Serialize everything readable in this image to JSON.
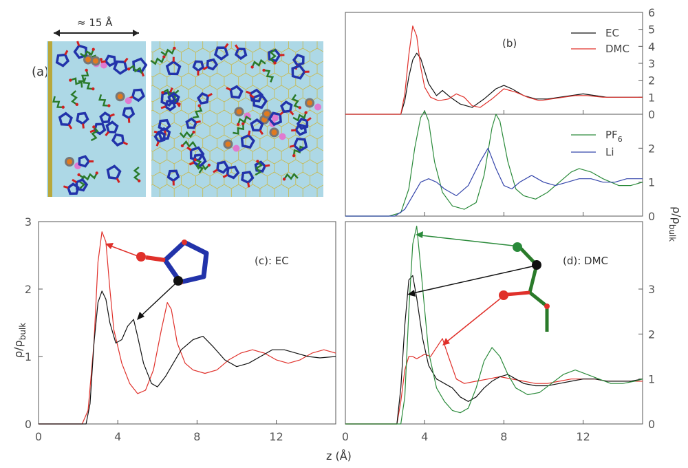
{
  "panel_a": {
    "label": "(a)",
    "scale_text": "≈ 15 Å",
    "box_color": "#add8e6",
    "graphene_color": "#c9b84a",
    "ec_color": "#2233aa",
    "dmc_color": "#2a7a2a",
    "li_color": "#e07ad0",
    "pf6_color": "#e07a20"
  },
  "panel_b": {
    "label": "(b)",
    "legend_top": [
      "EC",
      "DMC"
    ],
    "legend_bottom_pf": "PF",
    "legend_bottom_pf_sub": "6",
    "legend_bottom_li": "Li",
    "right_ticks_top": [
      "6",
      "5",
      "4",
      "3",
      "2",
      "1",
      "0"
    ],
    "right_ticks_bottom": [
      "2",
      "1",
      "0"
    ]
  },
  "panel_c": {
    "label": "(c): EC",
    "ylabel": "ρ/ρ",
    "ylabel_sub": "bulk",
    "yticks": [
      "0",
      "1",
      "2",
      "3"
    ],
    "xticks": [
      "0",
      "4",
      "8",
      "12"
    ]
  },
  "panel_d": {
    "label": "(d): DMC",
    "ylabel": "ρ/ρ",
    "ylabel_sub": "bulk",
    "yticks": [
      "0",
      "1",
      "2",
      "3"
    ],
    "xticks": [
      "0",
      "4",
      "8",
      "12"
    ]
  },
  "xlabel": "z (Å)",
  "colors": {
    "red": "#e0302a",
    "black": "#111111",
    "green": "#2a8a3a",
    "blue": "#3344aa",
    "axis": "#555555"
  },
  "chart_data": [
    {
      "panel": "b-top",
      "type": "line",
      "xlim": [
        0,
        15
      ],
      "ylim": [
        0,
        6
      ],
      "series": [
        {
          "name": "EC",
          "x": [
            0,
            2.8,
            3.0,
            3.2,
            3.4,
            3.6,
            3.8,
            4.2,
            4.6,
            4.9,
            5.3,
            5.8,
            6.4,
            7.0,
            7.6,
            8.0,
            8.4,
            9.0,
            9.6,
            10.2,
            10.8,
            11.4,
            12.0,
            12.6,
            13.2,
            14.0,
            15.0
          ],
          "y": [
            0,
            0,
            0.8,
            2.2,
            3.2,
            3.6,
            3.3,
            1.8,
            1.1,
            1.4,
            1.0,
            0.6,
            0.4,
            0.9,
            1.5,
            1.7,
            1.5,
            1.1,
            0.9,
            0.9,
            1.0,
            1.1,
            1.2,
            1.1,
            1.0,
            1.0,
            1.0
          ]
        },
        {
          "name": "DMC",
          "x": [
            0,
            2.8,
            3.0,
            3.2,
            3.4,
            3.6,
            3.8,
            4.0,
            4.3,
            4.7,
            5.2,
            5.6,
            6.0,
            6.4,
            6.8,
            7.4,
            8.0,
            8.6,
            9.2,
            9.8,
            10.4,
            11.0,
            11.6,
            12.2,
            13.0,
            14.0,
            15.0
          ],
          "y": [
            0,
            0,
            1.2,
            3.5,
            5.2,
            4.6,
            2.8,
            1.6,
            1.0,
            0.8,
            0.9,
            1.2,
            1.0,
            0.5,
            0.4,
            0.9,
            1.5,
            1.3,
            1.0,
            0.8,
            0.9,
            1.0,
            1.1,
            1.1,
            1.0,
            1.0,
            1.0
          ]
        }
      ]
    },
    {
      "panel": "b-bottom",
      "type": "line",
      "xlim": [
        0,
        15
      ],
      "ylim": [
        0,
        3
      ],
      "series": [
        {
          "name": "PF6",
          "x": [
            0,
            2.2,
            2.8,
            3.2,
            3.5,
            3.8,
            4.0,
            4.2,
            4.5,
            4.9,
            5.4,
            6.0,
            6.6,
            7.0,
            7.4,
            7.6,
            7.8,
            8.2,
            8.6,
            9.0,
            9.6,
            10.2,
            10.8,
            11.4,
            11.8,
            12.4,
            13.0,
            13.8,
            14.4,
            15.0
          ],
          "y": [
            0,
            0,
            0.1,
            0.8,
            2.0,
            2.9,
            3.1,
            2.8,
            1.6,
            0.7,
            0.3,
            0.2,
            0.4,
            1.2,
            2.6,
            3.0,
            2.8,
            1.6,
            0.8,
            0.6,
            0.5,
            0.7,
            1.0,
            1.3,
            1.4,
            1.3,
            1.1,
            0.9,
            0.9,
            1.0
          ]
        },
        {
          "name": "Li",
          "x": [
            0,
            2.5,
            3.0,
            3.4,
            3.8,
            4.2,
            4.6,
            5.0,
            5.6,
            6.2,
            6.8,
            7.2,
            7.6,
            8.0,
            8.4,
            8.8,
            9.4,
            10.0,
            10.6,
            11.2,
            11.8,
            12.4,
            13.0,
            13.6,
            14.2,
            15.0
          ],
          "y": [
            0,
            0,
            0.2,
            0.6,
            1.0,
            1.1,
            1.0,
            0.8,
            0.6,
            0.9,
            1.6,
            2.0,
            1.4,
            0.9,
            0.8,
            1.0,
            1.2,
            1.0,
            0.9,
            1.0,
            1.1,
            1.1,
            1.0,
            1.0,
            1.1,
            1.1
          ]
        }
      ]
    },
    {
      "panel": "c",
      "type": "line",
      "title": "(c): EC",
      "xlim": [
        0,
        15
      ],
      "ylim": [
        0,
        3
      ],
      "series": [
        {
          "x": [
            0,
            2.2,
            2.5,
            2.8,
            3.0,
            3.2,
            3.4,
            3.6,
            3.8,
            4.2,
            4.6,
            5.0,
            5.4,
            5.8,
            6.2,
            6.5,
            6.7,
            7.0,
            7.4,
            7.8,
            8.4,
            9.0,
            9.6,
            10.2,
            10.8,
            11.4,
            12.0,
            12.6,
            13.2,
            13.8,
            14.4,
            15.0
          ],
          "y": [
            0,
            0,
            0.2,
            1.2,
            2.4,
            2.85,
            2.7,
            2.0,
            1.4,
            0.9,
            0.6,
            0.45,
            0.5,
            0.8,
            1.4,
            1.8,
            1.7,
            1.2,
            0.9,
            0.8,
            0.75,
            0.8,
            0.95,
            1.05,
            1.1,
            1.05,
            0.95,
            0.9,
            0.95,
            1.05,
            1.1,
            1.05
          ]
        },
        {
          "x": [
            0,
            2.4,
            2.6,
            2.8,
            3.0,
            3.2,
            3.4,
            3.6,
            3.9,
            4.2,
            4.5,
            4.8,
            5.0,
            5.3,
            5.7,
            6.0,
            6.4,
            6.8,
            7.2,
            7.8,
            8.3,
            8.8,
            9.4,
            10.0,
            10.6,
            11.2,
            11.8,
            12.4,
            13.0,
            13.6,
            14.2,
            15.0
          ],
          "y": [
            0,
            0,
            0.3,
            1.2,
            1.8,
            1.97,
            1.85,
            1.5,
            1.2,
            1.25,
            1.45,
            1.55,
            1.3,
            0.9,
            0.6,
            0.55,
            0.7,
            0.9,
            1.1,
            1.25,
            1.3,
            1.15,
            0.95,
            0.85,
            0.9,
            1.0,
            1.1,
            1.1,
            1.05,
            1.0,
            0.98,
            1.0
          ]
        }
      ]
    },
    {
      "panel": "d",
      "type": "line",
      "title": "(d): DMC",
      "xlim": [
        0,
        15
      ],
      "ylim": [
        0,
        4.5
      ],
      "series": [
        {
          "x": [
            0,
            2.6,
            2.8,
            3.0,
            3.2,
            3.4,
            3.6,
            3.8,
            4.0,
            4.3,
            4.6,
            4.9,
            5.2,
            5.6,
            6.0,
            6.6,
            7.2,
            7.8,
            8.4,
            9.0,
            9.6,
            10.2,
            10.8,
            11.4,
            12.0,
            12.6,
            13.2,
            13.8,
            14.4,
            15.0
          ],
          "y": [
            0,
            0,
            0.5,
            1.2,
            1.5,
            1.5,
            1.45,
            1.5,
            1.55,
            1.5,
            1.7,
            1.9,
            1.5,
            1.0,
            0.9,
            0.95,
            1.0,
            1.05,
            1.0,
            0.95,
            0.9,
            0.9,
            0.95,
            1.0,
            1.0,
            1.0,
            0.95,
            0.95,
            0.95,
            0.95
          ]
        },
        {
          "x": [
            0,
            2.6,
            2.8,
            3.0,
            3.2,
            3.4,
            3.6,
            3.9,
            4.2,
            4.6,
            5.0,
            5.4,
            5.8,
            6.2,
            6.6,
            7.0,
            7.4,
            7.8,
            8.2,
            8.6,
            9.0,
            9.6,
            10.2,
            10.8,
            11.4,
            12.0,
            12.6,
            13.2,
            13.8,
            14.4,
            15.0
          ],
          "y": [
            0,
            0,
            0.8,
            2.2,
            3.2,
            3.3,
            2.8,
            1.9,
            1.3,
            1.0,
            0.9,
            0.8,
            0.6,
            0.5,
            0.6,
            0.8,
            0.95,
            1.05,
            1.1,
            1.0,
            0.9,
            0.85,
            0.85,
            0.9,
            0.95,
            1.0,
            1.0,
            0.95,
            0.95,
            0.95,
            1.0
          ]
        },
        {
          "x": [
            0,
            2.8,
            3.0,
            3.2,
            3.4,
            3.6,
            3.8,
            4.2,
            4.6,
            5.0,
            5.4,
            5.8,
            6.2,
            6.6,
            7.0,
            7.4,
            7.8,
            8.2,
            8.6,
            9.2,
            9.8,
            10.4,
            11.0,
            11.6,
            12.2,
            12.8,
            13.4,
            14.0,
            14.6,
            15.0
          ],
          "y": [
            0,
            0,
            0.6,
            2.5,
            4.0,
            4.4,
            3.5,
            1.6,
            0.8,
            0.5,
            0.3,
            0.25,
            0.35,
            0.8,
            1.4,
            1.7,
            1.5,
            1.1,
            0.8,
            0.65,
            0.7,
            0.9,
            1.1,
            1.2,
            1.1,
            1.0,
            0.9,
            0.9,
            0.95,
            1.0
          ]
        }
      ]
    }
  ]
}
